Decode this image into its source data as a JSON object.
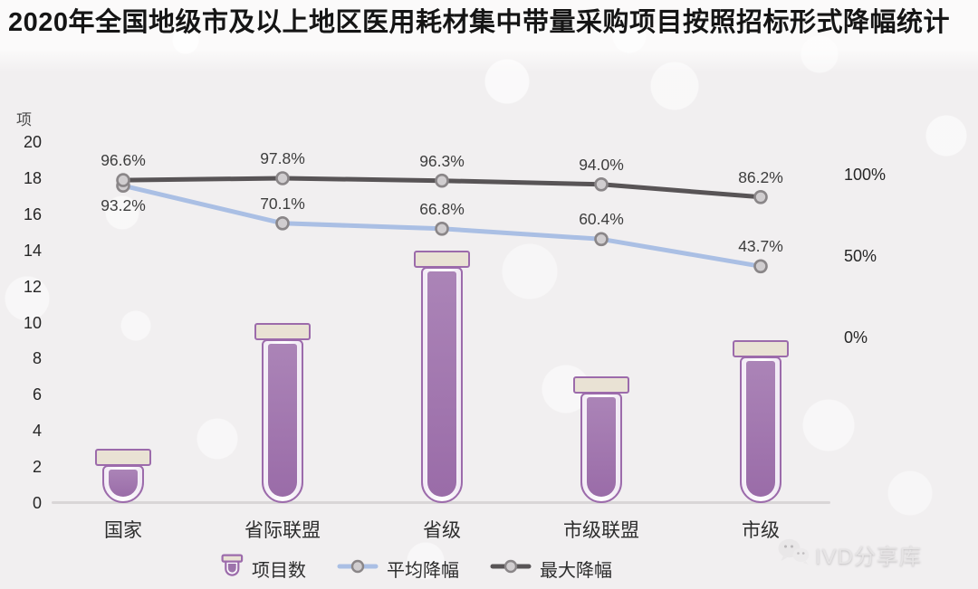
{
  "title": "2020年全国地级市及以上地区医用耗材集中带量采购项目按照招标形式降幅统计",
  "chart_data": {
    "type": "combo-bar-line",
    "categories": [
      "国家",
      "省际联盟",
      "省级",
      "市级联盟",
      "市级"
    ],
    "bar_series": {
      "name": "项目数",
      "values": [
        3,
        10,
        14,
        7,
        9
      ],
      "axis": "left"
    },
    "line_series": [
      {
        "name": "平均降幅",
        "values": [
          93.2,
          70.1,
          66.8,
          60.4,
          43.7
        ],
        "axis": "right",
        "color": "#aabfe4",
        "label_position": "above-except-first-below"
      },
      {
        "name": "最大降幅",
        "values": [
          96.6,
          97.8,
          96.3,
          94.0,
          86.2
        ],
        "axis": "right",
        "color": "#58545​6",
        "label_position": "above"
      }
    ],
    "left_axis": {
      "label": "项",
      "min": 0,
      "max": 20,
      "step": 2
    },
    "right_axis": {
      "min": 0,
      "max": 100,
      "tick_labels": [
        "0%",
        "50%",
        "100%"
      ]
    },
    "grid": false,
    "legend_position": "bottom"
  },
  "legend": {
    "items": [
      {
        "label": "项目数",
        "type": "bar"
      },
      {
        "label": "平均降幅",
        "type": "line",
        "series": 0
      },
      {
        "label": "最大降幅",
        "type": "line",
        "series": 1
      }
    ]
  },
  "watermark": {
    "text": "IVD分享库",
    "icon": "wechat-icon"
  },
  "colors": {
    "tube_border": "#9c6bab",
    "tube_fill": "#9d74ab",
    "tube_cap": "#e9e2d4",
    "line_avg": "#aabfe4",
    "line_max": "#585456",
    "marker_fill": "#d0cdcf",
    "marker_ring": "#8a8688",
    "background": "#f1eff0",
    "text": "#2d2d2d"
  }
}
